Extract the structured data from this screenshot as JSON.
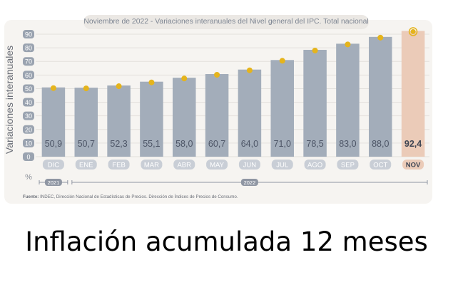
{
  "title": {
    "date": "Noviembre de 2022",
    "separator": " - ",
    "text": "Variaciones interanuales del Nivel general del IPC. Total nacional"
  },
  "source": "Fuente: INDEC, Dirección Nacional de Estadísticas de Precios. Dirección de Índices de Precios de Consumo.",
  "caption": "Inflación acumulada 12 meses",
  "colors": {
    "bar": "#a3adba",
    "bar_highlight": "#ebcbb8",
    "dot": "#e5b41c",
    "label_pill": "#c9ced6",
    "label_pill_highlight": "#ebcbb8"
  },
  "chart_data": {
    "type": "bar",
    "ylabel": "Variaciones interanuales",
    "yunit": "%",
    "ylim": [
      0,
      90
    ],
    "yticks": [
      0,
      10,
      20,
      30,
      40,
      50,
      60,
      70,
      80,
      90
    ],
    "grid": true,
    "categories": [
      "DIC",
      "ENE",
      "FEB",
      "MAR",
      "ABR",
      "MAY",
      "JUN",
      "JUL",
      "AGO",
      "SEP",
      "OCT",
      "NOV"
    ],
    "values": [
      50.9,
      50.7,
      52.3,
      55.1,
      58.0,
      60.7,
      64.0,
      71.0,
      78.5,
      83.0,
      88.0,
      92.4
    ],
    "value_labels": [
      "50,9",
      "50,7",
      "52,3",
      "55,1",
      "58,0",
      "60,7",
      "64,0",
      "71,0",
      "78,5",
      "83,0",
      "88,0",
      "92,4"
    ],
    "highlight_category": "NOV",
    "year_groups": [
      {
        "label": "2021",
        "categories": [
          "DIC"
        ]
      },
      {
        "label": "2022",
        "categories": [
          "ENE",
          "FEB",
          "MAR",
          "ABR",
          "MAY",
          "JUN",
          "JUL",
          "AGO",
          "SEP",
          "OCT",
          "NOV"
        ]
      }
    ]
  }
}
